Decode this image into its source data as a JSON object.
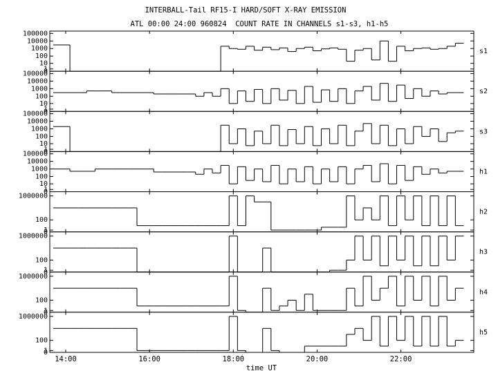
{
  "chart_data": {
    "type": "line",
    "step": true,
    "title": "INTERBALL-Tail RF15-I HARD/SOFT X-RAY EMISSION",
    "subtitle": "ATL 00:00 24:00 960824  COUNT RATE IN CHANNELS s1-s3, h1-h5",
    "x_label": "time UT",
    "log_scale": true,
    "grid": false,
    "xlim": [
      13.62,
      23.74
    ],
    "xticks": [
      {
        "value": 14,
        "label": "14:00"
      },
      {
        "value": 16,
        "label": "16:00"
      },
      {
        "value": 18,
        "label": "18:00"
      },
      {
        "value": 20,
        "label": "20:00"
      },
      {
        "value": 22,
        "label": "22:00"
      }
    ],
    "x": [
      13.7,
      13.9,
      14.1,
      14.3,
      14.5,
      14.7,
      14.9,
      15.1,
      15.3,
      15.5,
      15.7,
      15.9,
      16.1,
      16.3,
      16.5,
      16.7,
      16.9,
      17.1,
      17.3,
      17.5,
      17.7,
      17.9,
      18.1,
      18.3,
      18.5,
      18.7,
      18.9,
      19.1,
      19.3,
      19.5,
      19.7,
      19.9,
      20.1,
      20.3,
      20.5,
      20.7,
      20.9,
      21.1,
      21.3,
      21.5,
      21.7,
      21.9,
      22.1,
      22.3,
      22.5,
      22.7,
      22.9,
      23.1,
      23.3
    ],
    "series": [
      {
        "name": "s1",
        "color": "#000000",
        "ylim": [
          0,
          200000
        ],
        "yticks": [
          0,
          1,
          10,
          100,
          1000,
          10000,
          100000
        ],
        "values": [
          3000,
          3000,
          0,
          0,
          0,
          0,
          0,
          0,
          0,
          0,
          0,
          0,
          0,
          0,
          0,
          0,
          0,
          0,
          0,
          0,
          2000,
          1000,
          800,
          2000,
          600,
          1500,
          700,
          1200,
          400,
          1000,
          1500,
          500,
          900,
          1200,
          800,
          20,
          600,
          1000,
          30,
          10000,
          20,
          2000,
          500,
          1000,
          1200,
          800,
          1000,
          2000,
          5000
        ]
      },
      {
        "name": "s2",
        "color": "#000000",
        "ylim": [
          0,
          200000
        ],
        "yticks": [
          0,
          1,
          10,
          100,
          1000,
          10000,
          100000
        ],
        "values": [
          300,
          300,
          300,
          300,
          500,
          500,
          500,
          300,
          300,
          300,
          300,
          300,
          200,
          200,
          200,
          200,
          200,
          100,
          300,
          100,
          1000,
          10,
          500,
          20,
          800,
          10,
          1000,
          30,
          600,
          10,
          2000,
          15,
          700,
          20,
          1000,
          10,
          500,
          2000,
          30,
          5000,
          20,
          3000,
          50,
          1000,
          100,
          500,
          200,
          300,
          300
        ]
      },
      {
        "name": "s3",
        "color": "#000000",
        "ylim": [
          0,
          200000
        ],
        "yticks": [
          0,
          1,
          10,
          100,
          1000,
          10000,
          100000
        ],
        "values": [
          2000,
          2000,
          0,
          0,
          0,
          0,
          0,
          0,
          0,
          0,
          0,
          0,
          0,
          0,
          0,
          0,
          0,
          0,
          0,
          0,
          3000,
          10,
          1000,
          5,
          500,
          10,
          3000,
          5,
          800,
          10,
          2000,
          5,
          1000,
          10,
          3000,
          5,
          500,
          5000,
          10,
          3000,
          5,
          1000,
          10,
          2000,
          100,
          1000,
          20,
          300,
          500
        ]
      },
      {
        "name": "h1",
        "color": "#000000",
        "ylim": [
          0,
          200000
        ],
        "yticks": [
          0,
          1,
          10,
          100,
          1000,
          10000,
          100000
        ],
        "values": [
          1000,
          1000,
          500,
          500,
          500,
          1000,
          1000,
          1000,
          1000,
          1000,
          1000,
          1000,
          400,
          400,
          400,
          400,
          400,
          200,
          1000,
          300,
          3000,
          10,
          2000,
          30,
          1000,
          20,
          3000,
          10,
          1000,
          20,
          2000,
          10,
          1000,
          20,
          2000,
          10,
          1000,
          3000,
          20,
          5000,
          10,
          3000,
          30,
          2000,
          200,
          1000,
          300,
          500,
          500
        ]
      },
      {
        "name": "h2",
        "color": "#000000",
        "ylim": [
          0,
          5000000
        ],
        "yticks": [
          0,
          1,
          100,
          1000000
        ],
        "values": [
          10000,
          10000,
          10000,
          10000,
          10000,
          10000,
          10000,
          10000,
          10000,
          10000,
          10,
          10,
          10,
          10,
          10,
          10,
          10,
          10,
          10,
          10,
          10,
          1000000,
          10,
          1000000,
          100000,
          100000,
          1,
          1,
          1,
          1,
          1,
          1,
          5,
          5,
          5,
          1000000,
          100,
          10000,
          100,
          1000000,
          10,
          1000000,
          100,
          1000000,
          10,
          1000000,
          10,
          1000000,
          10
        ]
      },
      {
        "name": "h3",
        "color": "#000000",
        "ylim": [
          0,
          5000000
        ],
        "yticks": [
          0,
          1,
          100,
          1000000
        ],
        "values": [
          10000,
          10000,
          10000,
          10000,
          10000,
          10000,
          10000,
          10000,
          10000,
          10000,
          0,
          0,
          0,
          0,
          0,
          0,
          0,
          0,
          0,
          0,
          0,
          1000000,
          0,
          0,
          0,
          10000,
          0,
          0,
          0,
          0,
          0,
          0,
          0,
          1,
          1,
          100,
          1000000,
          100,
          1000000,
          10,
          1000000,
          100,
          1000000,
          10,
          1000000,
          10,
          1000000,
          100,
          1000000
        ]
      },
      {
        "name": "h4",
        "color": "#000000",
        "ylim": [
          0,
          5000000
        ],
        "yticks": [
          0,
          1,
          100,
          1000000
        ],
        "values": [
          10000,
          10000,
          10000,
          10000,
          10000,
          10000,
          10000,
          10000,
          10000,
          10000,
          10,
          10,
          10,
          10,
          10,
          10,
          10,
          10,
          10,
          10,
          10,
          1000000,
          1,
          0,
          0,
          10000,
          1,
          10,
          100,
          1,
          1000,
          1,
          1,
          1,
          1,
          10000,
          10,
          1000000,
          100,
          10000,
          1000000,
          10,
          1000000,
          100,
          1000000,
          10,
          1000000,
          100,
          10000
        ]
      },
      {
        "name": "h5",
        "color": "#000000",
        "ylim": [
          0,
          5000000
        ],
        "yticks": [
          0,
          1,
          100,
          1000000
        ],
        "values": [
          10000,
          10000,
          10000,
          10000,
          10000,
          10000,
          10000,
          10000,
          10000,
          10000,
          1,
          1,
          1,
          1,
          1,
          1,
          1,
          1,
          1,
          1,
          1,
          1000000,
          1,
          0,
          0,
          10000,
          1,
          0,
          0,
          0,
          10,
          10,
          10,
          10,
          10,
          1000,
          10000,
          100,
          1000000,
          10,
          1000000,
          100,
          1000000,
          10,
          1000000,
          10,
          1000000,
          10,
          100
        ]
      }
    ]
  }
}
